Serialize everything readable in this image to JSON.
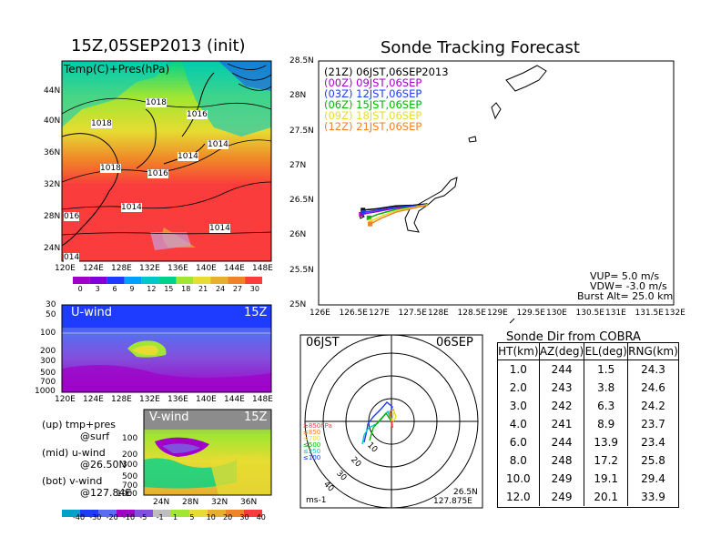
{
  "left": {
    "title": "15Z,05SEP2013 (init)",
    "map_label": "Temp(C)+Pres(hPa)",
    "lat_ticks": [
      "44N",
      "40N",
      "36N",
      "32N",
      "28N",
      "24N"
    ],
    "lon_ticks": [
      "120E",
      "124E",
      "128E",
      "132E",
      "136E",
      "140E",
      "144E",
      "148E"
    ],
    "isobars": [
      "1018",
      "1016",
      "1018",
      "1014",
      "1018",
      "1016",
      "1014",
      "016",
      "1014",
      "1014",
      "014"
    ],
    "temp_colorbar": [
      "0",
      "3",
      "6",
      "9",
      "12",
      "15",
      "18",
      "21",
      "24",
      "27",
      "30"
    ],
    "u_title": "U-wind",
    "u_time": "15Z",
    "v_title": "V-wind",
    "v_time": "15Z",
    "p_ticks": [
      "30",
      "50",
      "100",
      "200",
      "300",
      "500",
      "700",
      "1000"
    ],
    "v_p_ticks": [
      "100",
      "200",
      "300",
      "500",
      "700",
      "1000"
    ],
    "v_lat_ticks": [
      "24N",
      "28N",
      "32N",
      "36N"
    ],
    "notes": [
      "(up) tmp+pres",
      "@surf",
      "(mid) u-wind",
      "@26.50N",
      "(bot) v-wind",
      "@127.84E"
    ],
    "wind_colorbar": [
      "-40",
      "-30",
      "-20",
      "-10",
      "-5",
      "-1",
      "1",
      "5",
      "10",
      "20",
      "30",
      "40"
    ],
    "colors": {
      "temp": [
        "#a000c8",
        "#8200dc",
        "#1e3cff",
        "#00a0ff",
        "#00c8c8",
        "#00d28c",
        "#a0e632",
        "#e6dc32",
        "#e6af2d",
        "#f08228",
        "#fa3c3c"
      ],
      "wind": [
        "#00a0c8",
        "#1e3cff",
        "#5a6cf0",
        "#a000c8",
        "#8250dc",
        "#bebebe",
        "#a0e632",
        "#e6dc32",
        "#e6af2d",
        "#f08228",
        "#fa3c3c"
      ]
    }
  },
  "tracking": {
    "title": "Sonde Tracking Forecast",
    "legend": [
      {
        "text": "(21Z) 06JST,06SEP2013",
        "color": "#000000"
      },
      {
        "text": "(00Z) 09JST,06SEP",
        "color": "#a000c8"
      },
      {
        "text": "(03Z) 12JST,06SEP",
        "color": "#1e3cff"
      },
      {
        "text": "(06Z) 15JST,06SEP",
        "color": "#00b400"
      },
      {
        "text": "(09Z) 18JST,06SEP",
        "color": "#e6dc32"
      },
      {
        "text": "(12Z) 21JST,06SEP",
        "color": "#f08228"
      }
    ],
    "y_ticks": [
      "28.5N",
      "28N",
      "27.5N",
      "27N",
      "26.5N",
      "26N",
      "25.5N",
      "25N"
    ],
    "x_ticks": [
      "126E",
      "126.5E",
      "127E",
      "127.5E",
      "128E",
      "128.5E",
      "129E",
      "129.5E",
      "130E",
      "130.5E",
      "131E",
      "131.5E",
      "132E"
    ],
    "info": [
      "VUP= 5.0 m/s",
      "VDW= -3.0 m/s",
      "Burst Alt= 25.0 km"
    ]
  },
  "polar": {
    "label_left": "06JST",
    "label_right": "06SEP",
    "ring_labels": [
      "10",
      "20",
      "30",
      "40"
    ],
    "level_legend": [
      {
        "text": "≥850hPa",
        "color": "#fa3c3c"
      },
      {
        "text": "≤850",
        "color": "#f08228"
      },
      {
        "text": "≤700",
        "color": "#e6dc32"
      },
      {
        "text": "≤500",
        "color": "#00b400"
      },
      {
        "text": "≤250",
        "color": "#00c8c8"
      },
      {
        "text": "≤100",
        "color": "#1e3cff"
      }
    ],
    "unit": "ms-1",
    "loc_lat": "26.5N",
    "loc_lon": "127.875E"
  },
  "chart_data": [
    {
      "type": "table",
      "title": "Sonde Dir from COBRA",
      "columns": [
        "HT(km)",
        "AZ(deg)",
        "EL(deg)",
        "RNG(km)"
      ],
      "rows": [
        [
          "1.0",
          "244",
          "1.5",
          "24.3"
        ],
        [
          "2.0",
          "243",
          "3.8",
          "24.6"
        ],
        [
          "3.0",
          "242",
          "6.3",
          "24.2"
        ],
        [
          "4.0",
          "241",
          "8.9",
          "23.7"
        ],
        [
          "6.0",
          "244",
          "13.9",
          "23.4"
        ],
        [
          "8.0",
          "248",
          "17.2",
          "25.8"
        ],
        [
          "10.0",
          "249",
          "19.1",
          "29.4"
        ],
        [
          "12.0",
          "249",
          "20.1",
          "33.9"
        ]
      ]
    },
    {
      "type": "line",
      "title": "Sonde Tracking Forecast",
      "xlim": [
        126,
        132
      ],
      "ylim": [
        25,
        28.5
      ],
      "series": [
        {
          "name": "(21Z) 06JST,06SEP2013",
          "color": "#000000",
          "x": [
            127.84,
            127.6,
            127.3,
            127.0,
            126.75
          ],
          "y": [
            26.45,
            26.43,
            26.42,
            26.38,
            26.36
          ]
        },
        {
          "name": "(00Z) 09JST,06SEP",
          "color": "#a000c8",
          "x": [
            127.84,
            127.6,
            127.3,
            127.0,
            126.72
          ],
          "y": [
            26.43,
            26.41,
            26.39,
            26.34,
            26.3
          ]
        },
        {
          "name": "(03Z) 12JST,06SEP",
          "color": "#1e3cff",
          "x": [
            127.84,
            127.6,
            127.3,
            127.0,
            126.76
          ],
          "y": [
            26.44,
            26.42,
            26.4,
            26.36,
            26.33
          ]
        },
        {
          "name": "(06Z) 15JST,06SEP",
          "color": "#00b400",
          "x": [
            127.84,
            127.6,
            127.3,
            127.0,
            126.85
          ],
          "y": [
            26.44,
            26.4,
            26.37,
            26.3,
            26.25
          ]
        },
        {
          "name": "(09Z) 18JST,06SEP",
          "color": "#e6dc32",
          "x": [
            127.84,
            127.6,
            127.3,
            127.05,
            126.88
          ],
          "y": [
            26.44,
            26.4,
            26.35,
            26.27,
            26.2
          ]
        },
        {
          "name": "(12Z) 21JST,06SEP",
          "color": "#f08228",
          "x": [
            127.84,
            127.6,
            127.3,
            127.05,
            126.87
          ],
          "y": [
            26.43,
            26.39,
            26.33,
            26.24,
            26.16
          ]
        }
      ]
    }
  ]
}
